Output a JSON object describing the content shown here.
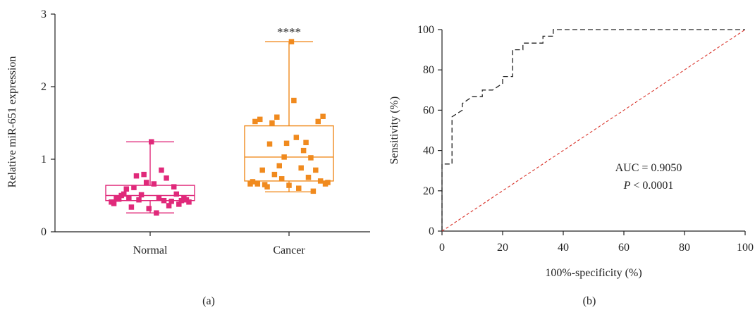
{
  "panel_labels": [
    "(a)",
    "(b)"
  ],
  "chart_data": [
    {
      "type": "box",
      "ylabel": "Relative miR-651 expression",
      "ylim": [
        0,
        3
      ],
      "yticks": [
        0,
        1,
        2,
        3
      ],
      "categories": [
        "Normal",
        "Cancer"
      ],
      "significance": "****",
      "groups": [
        {
          "name": "Normal",
          "color": "#e0297a",
          "box": {
            "min": 0.26,
            "q1": 0.43,
            "median": 0.5,
            "q3": 0.64,
            "max": 1.24
          },
          "points": [
            0.41,
            0.39,
            0.46,
            0.45,
            0.5,
            0.52,
            0.59,
            0.46,
            0.34,
            0.61,
            0.77,
            0.44,
            0.51,
            0.79,
            0.68,
            0.32,
            1.24,
            0.66,
            0.26,
            0.47,
            0.85,
            0.43,
            0.74,
            0.36,
            0.42,
            0.62,
            0.52,
            0.38,
            0.43,
            0.46,
            0.44,
            0.41
          ]
        },
        {
          "name": "Cancer",
          "color": "#f08a1e",
          "box": {
            "min": 0.55,
            "q1": 0.7,
            "median": 1.03,
            "q3": 1.46,
            "max": 2.62
          },
          "points": [
            0.66,
            0.69,
            1.52,
            0.66,
            1.55,
            0.85,
            0.65,
            0.62,
            1.21,
            1.5,
            0.79,
            1.58,
            0.91,
            0.73,
            1.03,
            1.22,
            0.64,
            2.62,
            1.81,
            1.3,
            0.6,
            0.88,
            1.12,
            1.23,
            0.75,
            1.02,
            0.56,
            0.85,
            1.52,
            0.7,
            1.59,
            0.66,
            0.68
          ]
        }
      ]
    },
    {
      "type": "line",
      "xlabel": "100%-specificity (%)",
      "ylabel": "Sensitivity (%)",
      "xlim": [
        0,
        100
      ],
      "ylim": [
        0,
        100
      ],
      "xticks": [
        0,
        20,
        40,
        60,
        80,
        100
      ],
      "yticks": [
        0,
        20,
        40,
        60,
        80,
        100
      ],
      "annotation": {
        "auc": "AUC = 0.9050",
        "p_italic": "P",
        "p_rest": " < 0.0001"
      },
      "series": [
        {
          "role": "roc",
          "color": "#222222",
          "x": [
            0,
            0,
            3.3,
            3.3,
            6.7,
            6.7,
            10,
            13.3,
            13.3,
            16.7,
            20,
            20,
            23.3,
            23.3,
            26.7,
            26.7,
            33.3,
            33.3,
            36.7,
            36.7,
            100
          ],
          "y": [
            0,
            33.3,
            33.3,
            56.7,
            60,
            63.3,
            66.7,
            66.7,
            70,
            70,
            73.3,
            76.7,
            76.7,
            90,
            90,
            93.3,
            93.3,
            96.7,
            96.7,
            100,
            100
          ]
        },
        {
          "role": "reference",
          "color": "#d9342b",
          "x": [
            0,
            100
          ],
          "y": [
            0,
            100
          ]
        }
      ]
    }
  ]
}
